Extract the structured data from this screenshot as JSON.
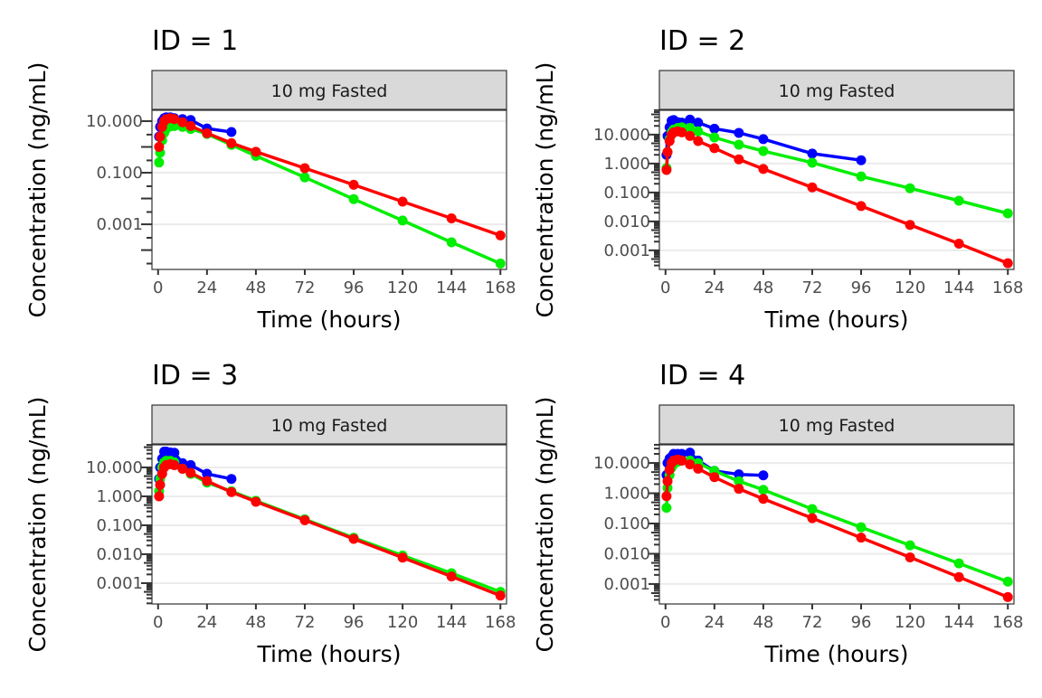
{
  "chart_data": {
    "type": "line",
    "layout": "2x2 grid of panels",
    "xlabel": "Time (hours)",
    "ylabel": "Concentration (ng/mL)",
    "x_ticks": [
      0,
      24,
      48,
      72,
      96,
      120,
      144,
      168
    ],
    "xlim": [
      -3,
      171
    ],
    "y_scale": "log10",
    "grid": true,
    "legend": "none",
    "colors": {
      "blue": "#0000ff",
      "green": "#00ee00",
      "red": "#ff0000"
    },
    "panels": [
      {
        "title": "ID = 1",
        "strip": "10 mg Fasted",
        "ylim_log10": [
          -4.75,
          1.42
        ],
        "y_tick_labels": [
          "10.000",
          "0.100",
          "0.001"
        ],
        "y_tick_values": [
          10,
          0.1,
          0.001
        ],
        "series": [
          {
            "name": "blue",
            "x": [
              0.5,
              1,
              2,
              3,
              4,
              6,
              8,
              12,
              16,
              24,
              36
            ],
            "y": [
              2.5,
              6,
              10,
              13,
              14,
              14,
              13,
              12,
              11,
              5.2,
              3.8
            ]
          },
          {
            "name": "green",
            "x": [
              0.5,
              1,
              2,
              3,
              4,
              6,
              8,
              12,
              16,
              24,
              36,
              48,
              72,
              96,
              120,
              144,
              168
            ],
            "y": [
              0.25,
              0.6,
              1.8,
              3.5,
              5,
              6.3,
              6.5,
              6,
              5,
              3.2,
              1.2,
              0.45,
              0.066,
              0.0095,
              0.0014,
              0.0002,
              3e-05
            ]
          },
          {
            "name": "red",
            "x": [
              0.5,
              1,
              2,
              3,
              4,
              6,
              8,
              12,
              16,
              24,
              36,
              48,
              72,
              96,
              120,
              144,
              168
            ],
            "y": [
              1,
              2.5,
              6,
              10,
              12,
              13,
              12,
              9,
              6.5,
              3.4,
              1.4,
              0.65,
              0.15,
              0.034,
              0.0076,
              0.0017,
              0.00037
            ]
          }
        ]
      },
      {
        "title": "ID = 2",
        "strip": "10 mg Fasted",
        "ylim_log10": [
          -3.66,
          1.84
        ],
        "y_tick_labels": [
          "10.000",
          "1.000",
          "0.100",
          "0.010",
          "0.001"
        ],
        "y_tick_values": [
          10,
          1,
          0.1,
          0.01,
          0.001
        ],
        "series": [
          {
            "name": "blue",
            "x": [
              0.5,
              1,
              2,
              3,
              4,
              6,
              8,
              12,
              16,
              24,
              36,
              48,
              72,
              96
            ],
            "y": [
              2,
              9,
              18,
              30,
              32,
              27,
              26,
              33,
              26,
              16,
              11.5,
              7,
              2.2,
              1.3
            ]
          },
          {
            "name": "green",
            "x": [
              0.5,
              1,
              2,
              3,
              4,
              6,
              8,
              12,
              16,
              24,
              36,
              48,
              72,
              96,
              120,
              144,
              168
            ],
            "y": [
              0.7,
              2.5,
              7,
              12,
              15,
              17,
              18,
              17,
              13,
              8,
              4.5,
              2.7,
              1.07,
              0.36,
              0.14,
              0.052,
              0.019
            ]
          },
          {
            "name": "red",
            "x": [
              0.5,
              1,
              2,
              3,
              4,
              6,
              8,
              12,
              16,
              24,
              36,
              48,
              72,
              96,
              120,
              144,
              168
            ],
            "y": [
              0.6,
              2.5,
              6,
              10,
              12,
              13,
              12,
              9,
              6,
              3.4,
              1.4,
              0.65,
              0.15,
              0.034,
              0.0076,
              0.0017,
              0.00036
            ]
          }
        ]
      },
      {
        "title": "ID = 3",
        "strip": "10 mg Fasted",
        "ylim_log10": [
          -3.72,
          1.78
        ],
        "y_tick_labels": [
          "10.000",
          "1.000",
          "0.100",
          "0.010",
          "0.001"
        ],
        "y_tick_values": [
          10,
          1,
          0.1,
          0.01,
          0.001
        ],
        "series": [
          {
            "name": "blue",
            "x": [
              0.5,
              1,
              2,
              3,
              4,
              6,
              8,
              12,
              16,
              24,
              36
            ],
            "y": [
              4,
              10,
              20,
              35,
              35,
              33,
              32,
              14,
              12,
              6,
              4
            ]
          },
          {
            "name": "green",
            "x": [
              0.5,
              1,
              2,
              3,
              4,
              6,
              8,
              12,
              16,
              24,
              36,
              48,
              72,
              96,
              120,
              144,
              168
            ],
            "y": [
              1.5,
              4,
              10,
              15,
              17,
              17,
              15,
              9,
              6,
              3,
              1.5,
              0.7,
              0.16,
              0.037,
              0.009,
              0.0022,
              0.0005
            ]
          },
          {
            "name": "red",
            "x": [
              0.5,
              1,
              2,
              3,
              4,
              6,
              8,
              12,
              16,
              24,
              36,
              48,
              72,
              96,
              120,
              144,
              168
            ],
            "y": [
              1,
              2.5,
              6,
              10,
              12,
              13,
              12,
              9,
              6.5,
              3.4,
              1.4,
              0.65,
              0.15,
              0.034,
              0.0076,
              0.0017,
              0.00037
            ]
          }
        ]
      },
      {
        "title": "ID = 4",
        "strip": "10 mg Fasted",
        "ylim_log10": [
          -3.66,
          1.6
        ],
        "y_tick_labels": [
          "10.000",
          "1.000",
          "0.100",
          "0.010",
          "0.001"
        ],
        "y_tick_values": [
          10,
          1,
          0.1,
          0.01,
          0.001
        ],
        "series": [
          {
            "name": "blue",
            "x": [
              0.5,
              1,
              2,
              3,
              4,
              6,
              8,
              12,
              16,
              24,
              36,
              48
            ],
            "y": [
              4,
              10,
              14,
              16,
              20,
              20,
              20,
              22,
              12,
              5.5,
              4.2,
              3.9
            ]
          },
          {
            "name": "green",
            "x": [
              0.5,
              1,
              2,
              3,
              4,
              6,
              8,
              12,
              16,
              24,
              36,
              48,
              72,
              96,
              120,
              144,
              168
            ],
            "y": [
              0.33,
              1.5,
              4,
              7,
              9,
              11,
              12,
              12,
              10,
              5.5,
              2.5,
              1.3,
              0.3,
              0.075,
              0.019,
              0.0048,
              0.0012
            ]
          },
          {
            "name": "red",
            "x": [
              0.5,
              1,
              2,
              3,
              4,
              6,
              8,
              12,
              16,
              24,
              36,
              48,
              72,
              96,
              120,
              144,
              168
            ],
            "y": [
              0.8,
              2.5,
              6,
              10,
              12,
              13,
              12,
              9,
              6.5,
              3.4,
              1.4,
              0.65,
              0.15,
              0.034,
              0.0076,
              0.0017,
              0.00037
            ]
          }
        ]
      }
    ]
  }
}
